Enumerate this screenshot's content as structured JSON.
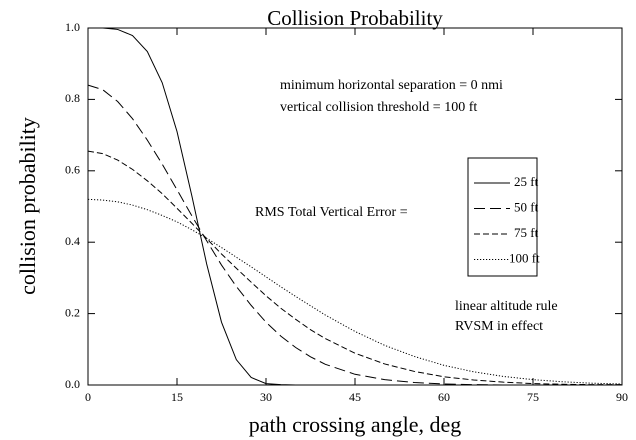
{
  "chart_data": {
    "type": "line",
    "title": "Collision Probability",
    "xlabel": "path crossing angle, deg",
    "ylabel": "collision probability",
    "annotations": [
      "minimum horizontal separation = 0 nmi",
      "vertical collision threshold = 100 ft",
      "RMS Total Vertical Error =",
      "linear altitude rule",
      "RVSM in effect"
    ],
    "x": [
      0,
      2.5,
      5,
      7.5,
      10,
      12.5,
      15,
      17.5,
      20,
      22.5,
      25,
      27.5,
      30,
      32.5,
      35,
      37.5,
      40,
      45,
      50,
      55,
      60,
      65,
      70,
      75,
      80,
      85,
      90
    ],
    "series": [
      {
        "name": "25 ft",
        "color": "#000000",
        "dash": "solid",
        "values": [
          1.0,
          1.0,
          0.996,
          0.979,
          0.934,
          0.847,
          0.71,
          0.53,
          0.339,
          0.176,
          0.071,
          0.021,
          0.004,
          0.001,
          0,
          0,
          0,
          0,
          0,
          0,
          0,
          0,
          0,
          0,
          0,
          0,
          0
        ]
      },
      {
        "name": "50 ft",
        "color": "#000000",
        "dash": "long-dash",
        "values": [
          0.84,
          0.827,
          0.794,
          0.746,
          0.686,
          0.619,
          0.547,
          0.474,
          0.404,
          0.336,
          0.276,
          0.223,
          0.176,
          0.137,
          0.105,
          0.079,
          0.058,
          0.03,
          0.015,
          0.007,
          0.003,
          0.001,
          0,
          0,
          0,
          0,
          0
        ]
      },
      {
        "name": "75 ft",
        "color": "#000000",
        "dash": "dash",
        "values": [
          0.655,
          0.648,
          0.63,
          0.604,
          0.572,
          0.536,
          0.495,
          0.453,
          0.41,
          0.367,
          0.327,
          0.288,
          0.25,
          0.215,
          0.184,
          0.155,
          0.13,
          0.089,
          0.059,
          0.038,
          0.023,
          0.014,
          0.008,
          0.004,
          0.002,
          0.001,
          0.001
        ]
      },
      {
        "name": "100 ft",
        "color": "#000000",
        "dash": "dot",
        "values": [
          0.52,
          0.518,
          0.513,
          0.504,
          0.491,
          0.475,
          0.457,
          0.435,
          0.411,
          0.385,
          0.358,
          0.331,
          0.303,
          0.275,
          0.248,
          0.222,
          0.196,
          0.15,
          0.111,
          0.08,
          0.055,
          0.037,
          0.024,
          0.015,
          0.009,
          0.005,
          0.003
        ]
      }
    ],
    "xlim": [
      0,
      90
    ],
    "xticks": [
      0,
      15,
      30,
      45,
      60,
      75,
      90
    ],
    "ylim": [
      0,
      1
    ],
    "yticks": [
      {
        "value": 0,
        "label": "0.0"
      },
      {
        "value": 0.2,
        "label": "0.2"
      },
      {
        "value": 0.4,
        "label": "0.4"
      },
      {
        "value": 0.6,
        "label": "0.6"
      },
      {
        "value": 0.8,
        "label": "0.8"
      },
      {
        "value": 1,
        "label": "1.0"
      }
    ]
  }
}
